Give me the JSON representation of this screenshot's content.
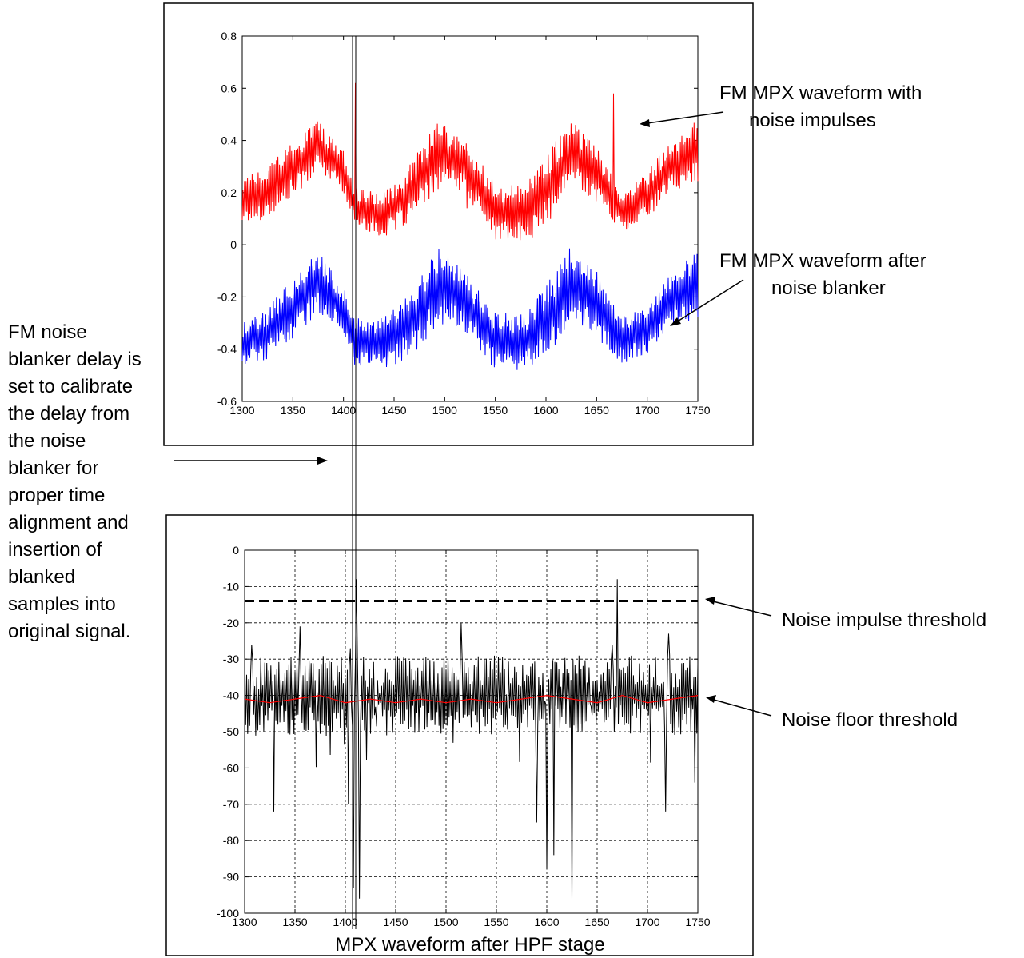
{
  "figure": {
    "left_note": [
      "FM noise",
      "blanker delay is",
      "set to calibrate",
      "the delay from",
      "the noise",
      "blanker for",
      "proper time",
      "alignment and",
      "insertion of",
      "blanked",
      "samples into",
      "original signal."
    ],
    "bottom_caption": "MPX waveform after HPF stage"
  },
  "chart_data": [
    {
      "type": "line",
      "title": "",
      "xlabel": "",
      "ylabel": "",
      "xlim": [
        1300,
        1750
      ],
      "ylim": [
        -0.6,
        0.8
      ],
      "xticks": [
        1300,
        1350,
        1400,
        1450,
        1500,
        1550,
        1600,
        1650,
        1700,
        1750
      ],
      "yticks": [
        -0.6,
        -0.4,
        -0.2,
        0,
        0.2,
        0.4,
        0.6,
        0.8
      ],
      "ytick_labels": [
        "-0.6",
        "-0.4",
        "-0.2",
        "0",
        "0.2",
        "0.4",
        "0.6",
        "0.8"
      ],
      "grid": false,
      "series": [
        {
          "color": "#ff0000",
          "envelope": {
            "x": [
              1300,
              1325,
              1350,
              1375,
              1400,
              1410,
              1440,
              1470,
              1495,
              1520,
              1550,
              1580,
              1610,
              1625,
              1650,
              1675,
              1700,
              1725,
              1750
            ],
            "low": [
              0.08,
              0.1,
              0.18,
              0.28,
              0.2,
              0.08,
              0.02,
              0.1,
              0.22,
              0.2,
              0.02,
              0.0,
              0.12,
              0.24,
              0.16,
              0.05,
              0.1,
              0.2,
              0.24
            ],
            "high": [
              0.26,
              0.3,
              0.4,
              0.48,
              0.36,
              0.22,
              0.2,
              0.34,
              0.48,
              0.4,
              0.24,
              0.24,
              0.4,
              0.48,
              0.38,
              0.2,
              0.28,
              0.42,
              0.48
            ]
          },
          "spikes": [
            {
              "x": 1412,
              "y": 0.62
            },
            {
              "x": 1667,
              "y": 0.58
            },
            {
              "x": 1522,
              "y": 0.14
            }
          ]
        },
        {
          "color": "#0000ff",
          "envelope": {
            "x": [
              1300,
              1325,
              1350,
              1375,
              1400,
              1410,
              1440,
              1470,
              1495,
              1520,
              1550,
              1580,
              1610,
              1625,
              1650,
              1675,
              1700,
              1725,
              1750
            ],
            "low": [
              -0.46,
              -0.44,
              -0.36,
              -0.26,
              -0.34,
              -0.46,
              -0.48,
              -0.42,
              -0.3,
              -0.34,
              -0.48,
              -0.48,
              -0.38,
              -0.28,
              -0.36,
              -0.46,
              -0.42,
              -0.32,
              -0.28
            ],
            "high": [
              -0.3,
              -0.24,
              -0.12,
              -0.02,
              -0.16,
              -0.28,
              -0.28,
              -0.14,
              0.0,
              -0.1,
              -0.26,
              -0.26,
              -0.1,
              0.0,
              -0.1,
              -0.26,
              -0.24,
              -0.1,
              0.0
            ]
          },
          "spikes": []
        }
      ],
      "annotations": [
        {
          "lines": [
            "FM MPX waveform with",
            "noise impulses"
          ]
        },
        {
          "lines": [
            "FM MPX waveform after",
            "noise blanker"
          ]
        }
      ]
    },
    {
      "type": "line",
      "title": "",
      "xlabel": "MPX waveform after HPF stage",
      "ylabel": "",
      "xlim": [
        1300,
        1750
      ],
      "ylim": [
        -100,
        0
      ],
      "xticks": [
        1300,
        1350,
        1400,
        1450,
        1500,
        1550,
        1600,
        1650,
        1700,
        1750
      ],
      "yticks": [
        -100,
        -90,
        -80,
        -70,
        -60,
        -50,
        -40,
        -30,
        -20,
        -10,
        0
      ],
      "ytick_labels": [
        "-100",
        "-90",
        "-80",
        "-70",
        "-60",
        "-50",
        "-40",
        "-30",
        "-20",
        "-10",
        "0"
      ],
      "grid": true,
      "series": [
        {
          "color": "#000000",
          "baseline": -40,
          "spikes_up": [
            {
              "x": 1307,
              "y": -26
            },
            {
              "x": 1355,
              "y": -21
            },
            {
              "x": 1405,
              "y": -27
            },
            {
              "x": 1411,
              "y": -8
            },
            {
              "x": 1515,
              "y": -20
            },
            {
              "x": 1665,
              "y": -26
            },
            {
              "x": 1670,
              "y": -8
            },
            {
              "x": 1721,
              "y": -23
            }
          ],
          "spikes_down": [
            {
              "x": 1329,
              "y": -72
            },
            {
              "x": 1403,
              "y": -70
            },
            {
              "x": 1414,
              "y": -96
            },
            {
              "x": 1408,
              "y": -93
            },
            {
              "x": 1590,
              "y": -75
            },
            {
              "x": 1600,
              "y": -88
            },
            {
              "x": 1607,
              "y": -84
            },
            {
              "x": 1625,
              "y": -96
            },
            {
              "x": 1718,
              "y": -72
            },
            {
              "x": 1747,
              "y": -64
            }
          ]
        },
        {
          "color": "#ff0000",
          "x": [
            1300,
            1325,
            1350,
            1375,
            1400,
            1425,
            1450,
            1475,
            1500,
            1525,
            1550,
            1575,
            1600,
            1625,
            1650,
            1675,
            1700,
            1725,
            1750
          ],
          "y": [
            -41,
            -42,
            -41,
            -40,
            -42,
            -41,
            -42,
            -41,
            -42,
            -41,
            -42,
            -41,
            -40,
            -41,
            -42,
            -40,
            -42,
            -41,
            -40
          ]
        }
      ],
      "threshold": {
        "y": -14,
        "style": "dashed",
        "color": "#000000"
      },
      "annotations": [
        {
          "lines": [
            "Noise impulse threshold"
          ]
        },
        {
          "lines": [
            "Noise floor threshold"
          ]
        }
      ]
    }
  ]
}
